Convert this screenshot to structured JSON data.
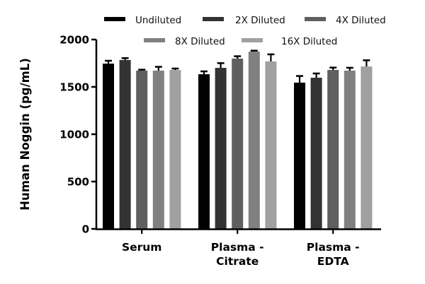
{
  "chart_data": {
    "type": "bar",
    "title": "",
    "xlabel": "",
    "ylabel": "Human Noggin (pg/mL)",
    "ylim": [
      0,
      2000
    ],
    "yticks": [
      0,
      500,
      1000,
      1500,
      2000
    ],
    "grid": false,
    "legend_position": "top",
    "categories": [
      {
        "lines": [
          "Serum"
        ]
      },
      {
        "lines": [
          "Plasma -",
          "Citrate"
        ]
      },
      {
        "lines": [
          "Plasma -",
          "EDTA"
        ]
      }
    ],
    "category_names": [
      "Serum",
      "Plasma - Citrate",
      "Plasma - EDTA"
    ],
    "series": [
      {
        "name": "Undiluted",
        "color": "#000000",
        "values": [
          1746,
          1634,
          1545
        ],
        "errors": [
          30,
          30,
          70
        ]
      },
      {
        "name": "2X Diluted",
        "color": "#333333",
        "values": [
          1784,
          1701,
          1597
        ],
        "errors": [
          20,
          50,
          45
        ]
      },
      {
        "name": "4X Diluted",
        "color": "#5f5f5f",
        "values": [
          1672,
          1799,
          1679
        ],
        "errors": [
          10,
          25,
          25
        ]
      },
      {
        "name": "8X Diluted",
        "color": "#808080",
        "values": [
          1672,
          1873,
          1672
        ],
        "errors": [
          40,
          10,
          30
        ]
      },
      {
        "name": "16X Diluted",
        "color": "#a0a0a0",
        "values": [
          1679,
          1769,
          1716
        ],
        "errors": [
          15,
          75,
          65
        ]
      }
    ]
  }
}
